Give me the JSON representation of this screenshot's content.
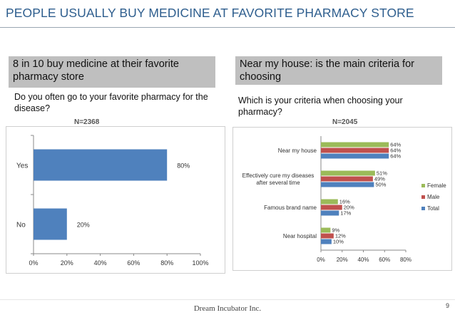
{
  "title": "PEOPLE USUALLY BUY MEDICINE AT FAVORITE PHARMACY STORE",
  "left": {
    "banner": "8 in 10 buy medicine at their favorite pharmacy store",
    "question": "Do you often go to your favorite pharmacy for the disease?",
    "n_label": "N=2368"
  },
  "right": {
    "banner": "Near my house: is the main criteria for choosing",
    "question": "Which is your criteria when choosing your pharmacy?",
    "n_label": "N=2045"
  },
  "chart_data": [
    {
      "type": "bar",
      "orientation": "horizontal",
      "categories": [
        "Yes",
        "No"
      ],
      "values": [
        80,
        20
      ],
      "value_labels": [
        "80%",
        "20%"
      ],
      "xlim": [
        0,
        100
      ],
      "xticks": [
        "0%",
        "20%",
        "40%",
        "60%",
        "80%",
        "100%"
      ],
      "color": "#4f81bd",
      "grid": false
    },
    {
      "type": "bar",
      "orientation": "horizontal",
      "categories": [
        "Near my house",
        "Effectively cure my diseases after several time",
        "Famous brand name",
        "Near hospital"
      ],
      "category_lines": [
        [
          "Near my house"
        ],
        [
          "Effectively cure my diseases",
          "after several time"
        ],
        [
          "Famous brand name"
        ],
        [
          "Near hospital"
        ]
      ],
      "series": [
        {
          "name": "Female",
          "color": "#9bbb59",
          "values": [
            64,
            51,
            16,
            9
          ]
        },
        {
          "name": "Male",
          "color": "#c0504d",
          "values": [
            64,
            49,
            20,
            12
          ]
        },
        {
          "name": "Total",
          "color": "#4f81bd",
          "values": [
            64,
            50,
            17,
            10
          ]
        }
      ],
      "xlim": [
        0,
        80
      ],
      "xticks": [
        "0%",
        "20%",
        "40%",
        "60%",
        "80%"
      ],
      "legend": "right",
      "grid": false
    }
  ],
  "footer": "Dream Incubator Inc.",
  "page_number": "9"
}
